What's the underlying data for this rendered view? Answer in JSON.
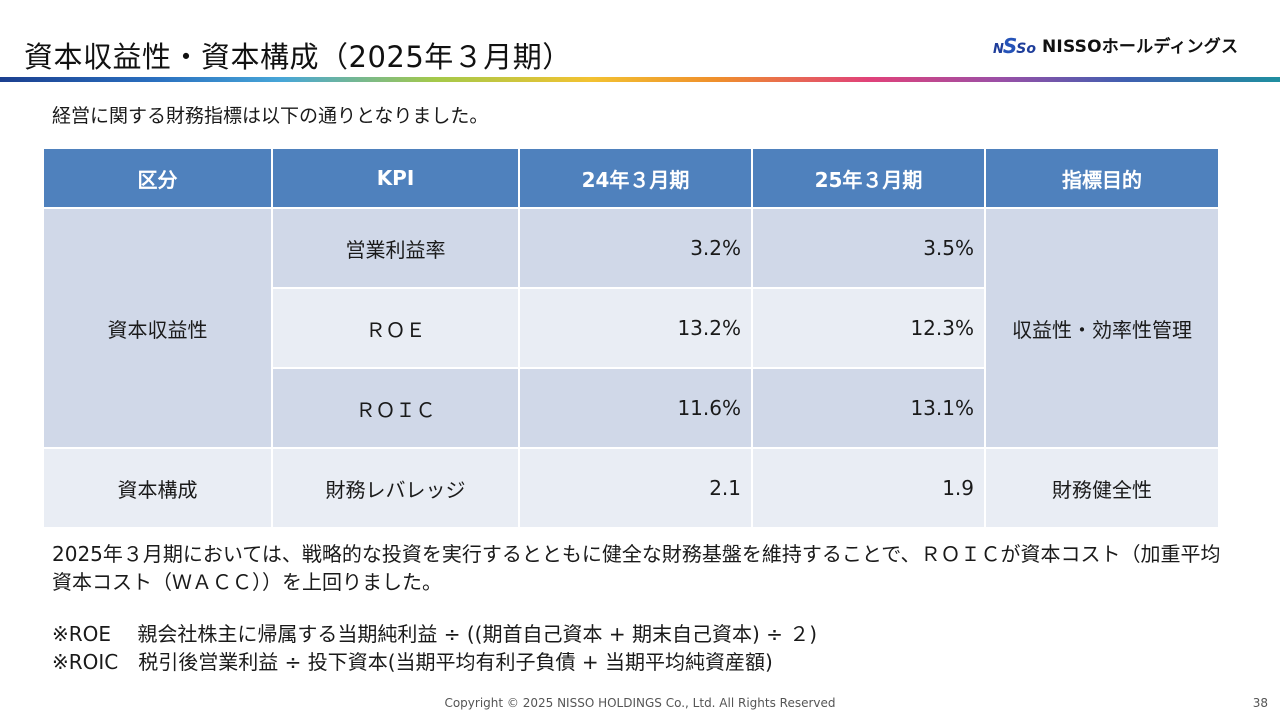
{
  "header": {
    "title": "資本収益性・資本構成（2025年３月期）",
    "logo_text": "NISSOホールディングス",
    "logo_mark": [
      "N",
      "S",
      "So"
    ]
  },
  "lead": "経営に関する財務指標は以下の通りとなりました。",
  "table": {
    "headers": [
      "区分",
      "KPI",
      "24年３月期",
      "25年３月期",
      "指標目的"
    ],
    "groups": [
      {
        "category": "資本収益性",
        "purpose": "収益性・効率性管理",
        "rows": [
          {
            "kpi": "営業利益率",
            "fy24": "3.2%",
            "fy25": "3.5%"
          },
          {
            "kpi": "ＲＯＥ",
            "fy24": "13.2%",
            "fy25": "12.3%"
          },
          {
            "kpi": "ＲＯＩＣ",
            "fy24": "11.6%",
            "fy25": "13.1%"
          }
        ]
      },
      {
        "category": "資本構成",
        "purpose": "財務健全性",
        "rows": [
          {
            "kpi": "財務レバレッジ",
            "fy24": "2.1",
            "fy25": "1.9"
          }
        ]
      }
    ]
  },
  "summary": "2025年３月期においては、戦略的な投資を実行するとともに健全な財務基盤を維持することで、ＲＯＩＣが資本コスト（加重平均資本コスト（ＷＡＣＣ））を上回りました。",
  "notes": [
    "※ROE　 親会社株主に帰属する当期純利益 ÷ ((期首自己資本 + 期末自己資本) ÷ ２)",
    "※ROIC　税引後営業利益 ÷ 投下資本(当期平均有利子負債 + 当期平均純資産額)"
  ],
  "footer": {
    "copyright": "Copyright © 2025 NISSO HOLDINGS Co., Ltd. All Rights Reserved",
    "page": "38"
  },
  "colors": {
    "header_fill": "#4f81bd",
    "row_dark": "#d0d8e8",
    "row_light": "#e9edf4"
  }
}
